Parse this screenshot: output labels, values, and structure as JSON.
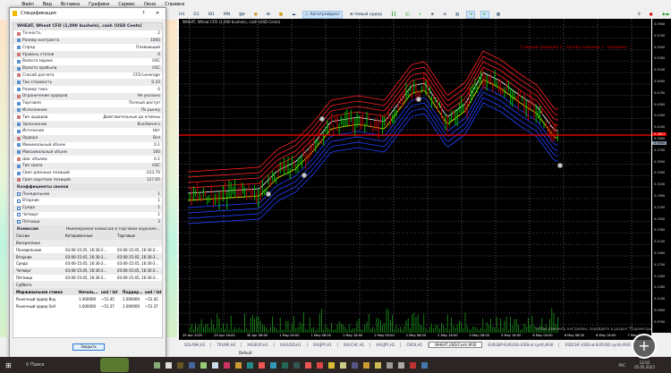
{
  "menu": [
    "Файл",
    "Вид",
    "Вставка",
    "Графики",
    "Сервис",
    "Окно",
    "Справка"
  ],
  "toolbar": {
    "timeframes": [
      "H4",
      "D1",
      "W1",
      "MN"
    ],
    "autotrading": "Автотрейдинг",
    "new_order": "Новый ордер"
  },
  "chart": {
    "title": "WHEAT, Wheat CFD (1,000 bushels), cash (USD Cents)",
    "annotation": "Главная продажа 2 - сигнал покупки 1 - продажа ...",
    "price_labels": [
      "5.5900",
      "5.5700",
      "5.5500",
      "5.5300",
      "5.5100",
      "5.4900",
      "5.4700",
      "5.4500",
      "5.4300",
      "5.4100",
      "5.3900",
      "5.3700",
      "5.3500",
      "5.3300",
      "5.3100",
      "5.2900",
      "5.2700",
      "5.2500",
      "5.2300",
      "5.2100",
      "5.1900",
      "5.1700",
      "5.1500",
      "5.1300",
      "5.1100",
      "5.0900",
      "5.0700"
    ],
    "current_price": "5.3813",
    "bid_price": "5.3500",
    "dates": [
      "29 Apr 2025",
      "29 Apr 16:00",
      "30 Apr 08:00",
      "1 May 00:00",
      "1 May 08:00",
      "1 May 16:00",
      "2 May 00:00",
      "2 May 08:00",
      "2 May 16:00",
      "5 May 08:00",
      "5 May 16:00",
      "6 May 00:00",
      "6 May 08:00",
      "6 May 16:00",
      "7 May 00:00"
    ],
    "hint": "Чтобы изменить настройки, перейдите в раздел \"Параметры\""
  },
  "tabs": [
    "SOLANA,H1",
    "TRUMP,H4",
    "XAGEUR,H1",
    "XAGUSD,H1",
    "XAUJPY,H1",
    "XAUCHF,H1",
    "XAGJPY,H1",
    "CN50,H1",
    "WHEAT,USD/Contr,M30",
    "EURGBP-EURUSD-USDind synth,M30",
    "USDCHF-USDind-EURUSD synth,M30"
  ],
  "status": {
    "profile": "Default"
  },
  "dialog": {
    "title": "Спецификация",
    "help": "?",
    "close": "✕",
    "header": "WHEAT, Wheat CFD (1,000 bushels), cash (USD Cents)",
    "props": [
      [
        "Точность",
        "2"
      ],
      [
        "Размер контракта",
        "1000"
      ],
      [
        "Спред",
        "Плавающий"
      ],
      [
        "Уровень стопов",
        "0"
      ],
      [
        "Валюта маржи",
        "USC"
      ],
      [
        "Валюта прибыли",
        "USC"
      ],
      [
        "Способ расчета",
        "CFD Leverage"
      ],
      [
        "Тик-стоимость",
        "0.10"
      ],
      [
        "Размер тика",
        "0"
      ],
      [
        "Ограничение ордеров",
        "Не указано"
      ],
      [
        "Торговля",
        "Полный доступ"
      ],
      [
        "Исполнение",
        "По рынку"
      ],
      [
        "Тип ордеров",
        "Действительные до отмены"
      ],
      [
        "Заполнение",
        "Все/Ничего"
      ],
      [
        "Истечение",
        "Нет"
      ],
      [
        "Ордера",
        "Все"
      ],
      [
        "Минимальный объем",
        "0.1"
      ],
      [
        "Максимальный объем",
        "100"
      ],
      [
        "Шаг объема",
        "0.1"
      ],
      [
        "Тип свопа",
        "USC"
      ],
      [
        "Своп длинных позиций",
        "-223.76"
      ],
      [
        "Своп коротких позиций",
        "127.65"
      ]
    ],
    "swap_header": "Коэффициенты свопов",
    "swap_days": [
      [
        "Понедельник",
        "1"
      ],
      [
        "Вторник",
        "1"
      ],
      [
        "Среда",
        "1"
      ],
      [
        "Четверг",
        "1"
      ],
      [
        "Пятница",
        "3"
      ]
    ],
    "commission": [
      "Комиссия",
      "Неизмеримая комиссия в торговом журнале..."
    ],
    "sessions_header": [
      "Сессии",
      "Котировочные",
      "Торговые"
    ],
    "sessions": [
      [
        "Воскресенье",
        "",
        ""
      ],
      [
        "Понедельник",
        "03:00-15:45, 16:30-2...",
        "03:00-15:45, 16:30-2..."
      ],
      [
        "Вторник",
        "03:00-15:45, 16:30-2...",
        "03:00-15:45, 16:30-2..."
      ],
      [
        "Среда",
        "03:00-15:45, 16:30-2...",
        "03:00-15:45, 16:30-2..."
      ],
      [
        "Четверг",
        "03:00-15:45, 16:30-2...",
        "03:00-15:45, 16:30-2..."
      ],
      [
        "Пятница",
        "03:00-15:45, 16:30-2...",
        "03:00-15:45, 16:30-2..."
      ],
      [
        "Суббота",
        "",
        ""
      ]
    ],
    "margin_header": [
      "Маржинальная ставка",
      "Началь...",
      "usd / lot",
      "Поддер...",
      "usd / lot"
    ],
    "margin": [
      [
        "Рыночный ордер Buy",
        "1.000000",
        "~51.45",
        "1.000000",
        "~51.45"
      ],
      [
        "Рыночный ордер Sell",
        "1.000000",
        "~51.37",
        "1.000000",
        "~51.37"
      ]
    ],
    "close_button": "Закрыть"
  },
  "taskbar": {
    "search": "Поиск",
    "lang": "РУС",
    "time": "12:02",
    "date": "05.05.2025"
  },
  "colors": {
    "upper_band": "#ff2020",
    "center": "#ffff00",
    "lower_band": "#2040ff",
    "candle_up": "#00c000",
    "hline": "#ff0000"
  }
}
